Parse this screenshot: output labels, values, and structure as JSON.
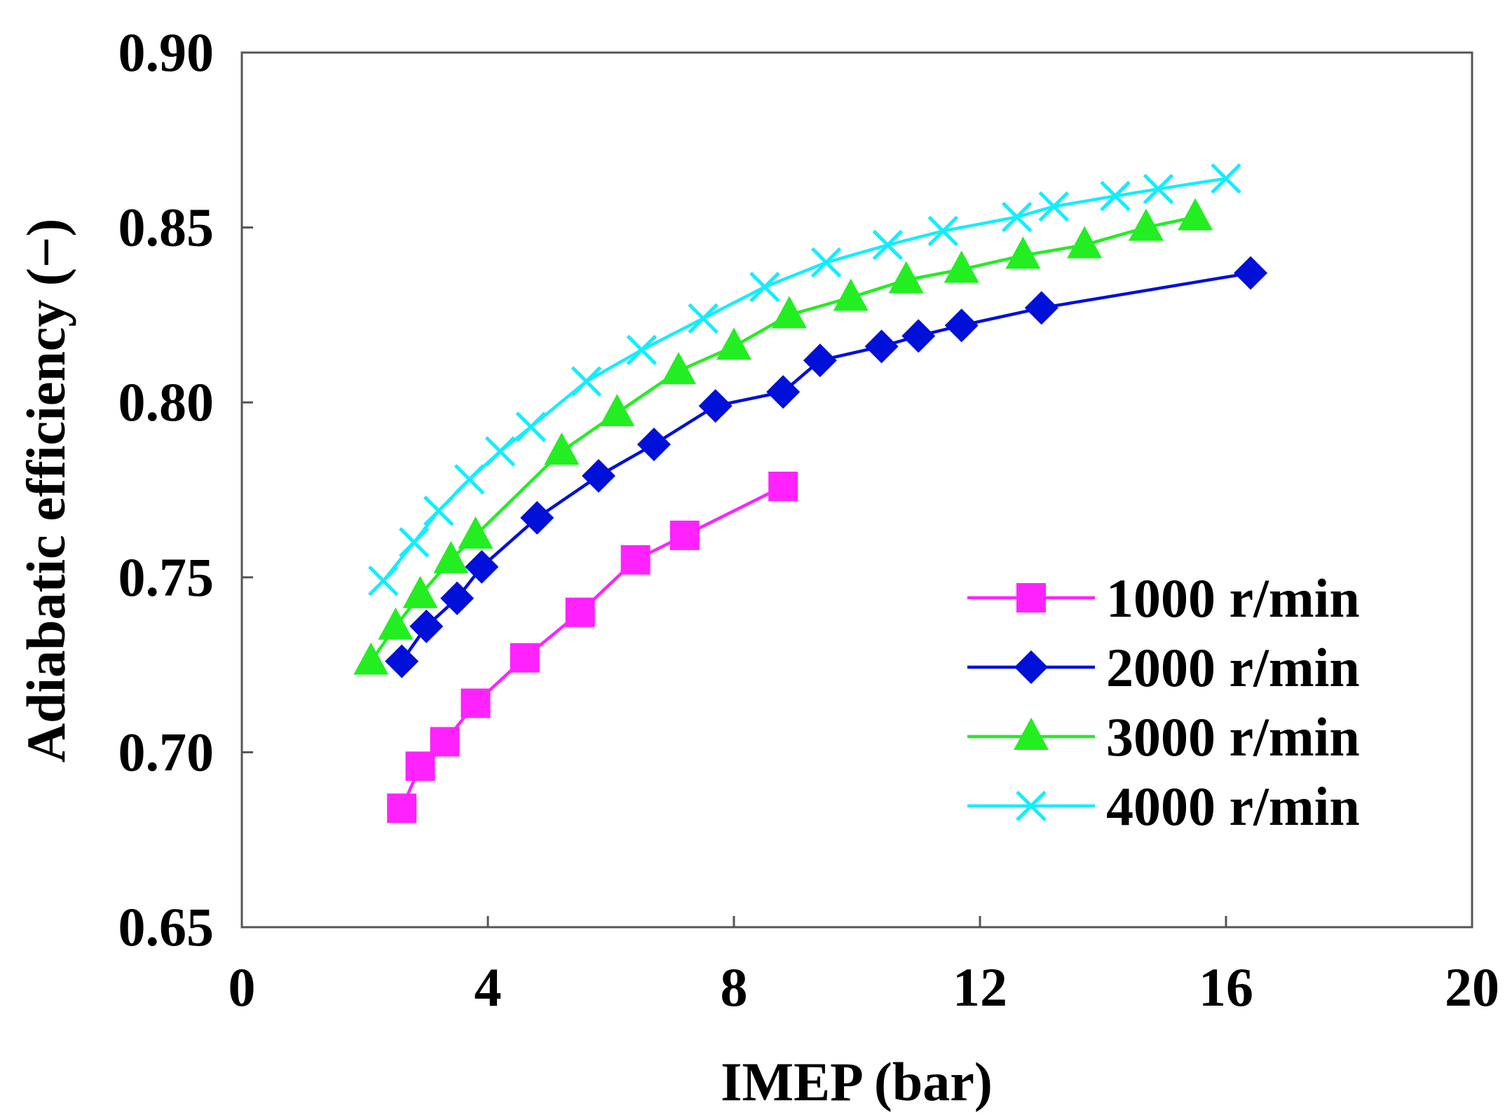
{
  "chart_data": {
    "type": "line",
    "title": "",
    "xlabel": "IMEP (bar)",
    "ylabel": "Adiabatic efficiency (−)",
    "xlim": [
      0,
      20
    ],
    "ylim": [
      0.65,
      0.9
    ],
    "xticks": [
      0,
      4,
      8,
      12,
      16,
      20
    ],
    "xtick_labels": [
      "0",
      "4",
      "8",
      "12",
      "16",
      "20"
    ],
    "yticks": [
      0.65,
      0.7,
      0.75,
      0.8,
      0.85,
      0.9
    ],
    "ytick_labels": [
      "0.65",
      "0.70",
      "0.75",
      "0.80",
      "0.85",
      "0.90"
    ],
    "grid": false,
    "legend_position": "bottom-right",
    "series": [
      {
        "name": "1000 r/min",
        "color": "#ff22ff",
        "marker": "square",
        "x": [
          2.6,
          2.9,
          3.3,
          3.8,
          4.6,
          5.5,
          6.4,
          7.2,
          8.8
        ],
        "y": [
          0.684,
          0.696,
          0.703,
          0.714,
          0.727,
          0.74,
          0.755,
          0.762,
          0.776
        ]
      },
      {
        "name": "2000 r/min",
        "color": "#0010d8",
        "marker": "diamond",
        "x": [
          2.6,
          3.0,
          3.5,
          3.9,
          4.8,
          5.8,
          6.7,
          7.7,
          8.8,
          9.4,
          10.4,
          11.0,
          11.7,
          13.0,
          16.4
        ],
        "y": [
          0.726,
          0.736,
          0.744,
          0.753,
          0.767,
          0.779,
          0.788,
          0.799,
          0.803,
          0.812,
          0.816,
          0.819,
          0.822,
          0.827,
          0.837
        ]
      },
      {
        "name": "3000 r/min",
        "color": "#22ee22",
        "marker": "triangle",
        "x": [
          2.1,
          2.5,
          2.9,
          3.4,
          3.8,
          5.2,
          6.1,
          7.1,
          8.0,
          8.9,
          9.9,
          10.8,
          11.7,
          12.7,
          13.7,
          14.7,
          15.5
        ],
        "y": [
          0.726,
          0.736,
          0.745,
          0.755,
          0.762,
          0.786,
          0.797,
          0.809,
          0.816,
          0.825,
          0.83,
          0.835,
          0.838,
          0.842,
          0.845,
          0.85,
          0.853
        ]
      },
      {
        "name": "4000 r/min",
        "color": "#11eeff",
        "marker": "x",
        "x": [
          2.3,
          2.8,
          3.2,
          3.7,
          4.2,
          4.7,
          5.6,
          6.5,
          7.5,
          8.5,
          9.5,
          10.5,
          11.4,
          12.6,
          13.2,
          14.2,
          14.9,
          16.0
        ],
        "y": [
          0.749,
          0.76,
          0.769,
          0.778,
          0.786,
          0.793,
          0.806,
          0.815,
          0.824,
          0.833,
          0.84,
          0.845,
          0.849,
          0.853,
          0.856,
          0.859,
          0.861,
          0.864
        ]
      }
    ]
  }
}
